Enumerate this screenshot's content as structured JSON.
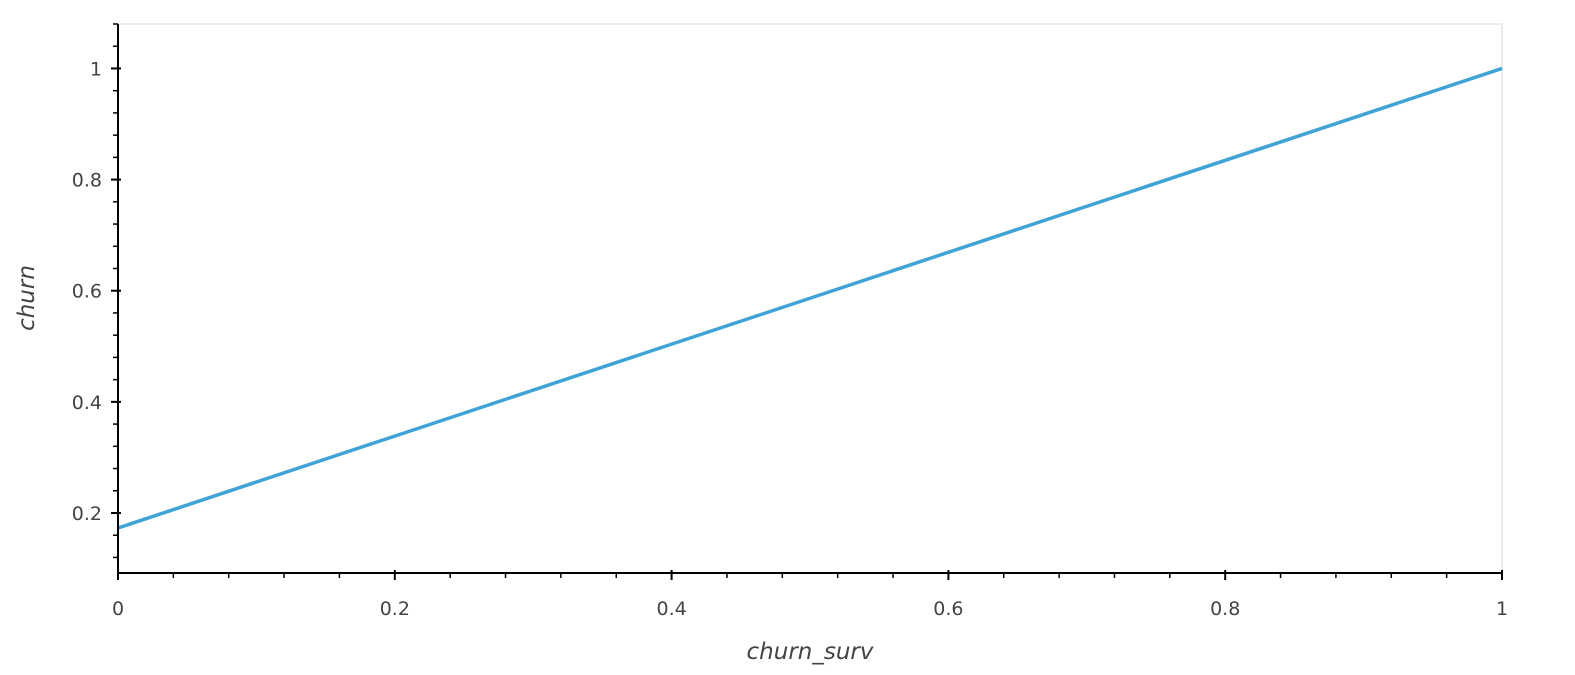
{
  "chart_data": {
    "type": "line",
    "title": "",
    "xlabel": "churn_surv",
    "ylabel": "churn",
    "xlim": [
      0,
      1
    ],
    "ylim": [
      0.092,
      1.08
    ],
    "x_ticks": [
      0,
      0.2,
      0.4,
      0.6,
      0.8,
      1
    ],
    "x_tick_labels": [
      "0",
      "0.2",
      "0.4",
      "0.6",
      "0.8",
      "1"
    ],
    "y_ticks": [
      0.2,
      0.4,
      0.6,
      0.8,
      1
    ],
    "y_tick_labels": [
      "0.2",
      "0.4",
      "0.6",
      "0.8",
      "1"
    ],
    "grid": false,
    "legend": "none",
    "series": [
      {
        "color": "#3fa3d6",
        "x": [
          0,
          1
        ],
        "y": [
          0.173,
          1.0
        ]
      }
    ]
  }
}
